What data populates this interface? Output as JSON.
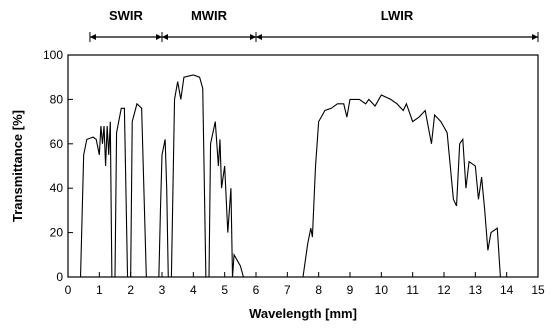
{
  "chart_data": {
    "type": "line",
    "xlabel": "Wavelength [mm]",
    "ylabel": "Transmittance [%]",
    "xlim": [
      0,
      15
    ],
    "xticks": [
      0,
      1,
      2,
      3,
      4,
      5,
      6,
      7,
      8,
      9,
      10,
      11,
      12,
      13,
      14,
      15
    ],
    "ylim": [
      0,
      100
    ],
    "yticks": [
      0,
      20,
      40,
      60,
      80,
      100
    ],
    "bands": [
      {
        "label": "SWIR",
        "range": [
          0.7,
          3
        ]
      },
      {
        "label": "MWIR",
        "range": [
          3,
          6
        ]
      },
      {
        "label": "LWIR",
        "range": [
          6,
          15
        ]
      }
    ],
    "series": [
      {
        "color": "#000000",
        "x": [
          0.4,
          0.5,
          0.6,
          0.8,
          0.9,
          1.0,
          1.05,
          1.1,
          1.15,
          1.2,
          1.25,
          1.3,
          1.35,
          1.4,
          1.5,
          1.55,
          1.7,
          1.8,
          1.9,
          2.0,
          2.05,
          2.2,
          2.35,
          2.5,
          2.9,
          2.95,
          3.0,
          3.1,
          3.15,
          3.2,
          3.3,
          3.4,
          3.5,
          3.6,
          3.7,
          4.0,
          4.2,
          4.3,
          4.4,
          4.5,
          4.55,
          4.7,
          4.8,
          4.85,
          4.9,
          5.0,
          5.1,
          5.2,
          5.25,
          5.3,
          5.5,
          5.6,
          7.5,
          7.65,
          7.75,
          7.8,
          7.9,
          8.0,
          8.2,
          8.4,
          8.6,
          8.8,
          8.9,
          9.0,
          9.3,
          9.5,
          9.6,
          9.8,
          10.0,
          10.3,
          10.5,
          10.7,
          10.8,
          11.0,
          11.2,
          11.4,
          11.6,
          11.7,
          11.9,
          12.1,
          12.3,
          12.4,
          12.5,
          12.6,
          12.7,
          12.8,
          13.0,
          13.1,
          13.2,
          13.3,
          13.4,
          13.5,
          13.7,
          13.8,
          13.9
        ],
        "values": [
          0,
          55,
          62,
          63,
          62,
          55,
          68,
          60,
          68,
          50,
          68,
          55,
          70,
          0,
          0,
          65,
          76,
          76,
          0,
          0,
          70,
          78,
          76,
          0,
          0,
          30,
          55,
          62,
          40,
          0,
          0,
          80,
          88,
          80,
          90,
          91,
          90,
          85,
          0,
          0,
          60,
          70,
          50,
          62,
          40,
          50,
          20,
          40,
          0,
          10,
          5,
          0,
          0,
          15,
          22,
          18,
          50,
          70,
          75,
          76,
          78,
          78,
          72,
          80,
          80,
          78,
          80,
          77,
          82,
          80,
          78,
          75,
          78,
          70,
          72,
          75,
          60,
          73,
          70,
          65,
          35,
          32,
          60,
          62,
          40,
          52,
          50,
          35,
          45,
          30,
          12,
          20,
          22,
          0,
          0
        ]
      }
    ]
  }
}
